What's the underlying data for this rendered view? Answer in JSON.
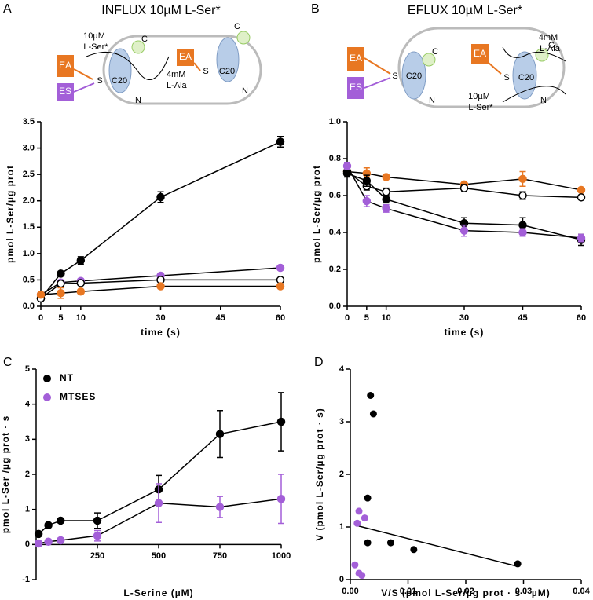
{
  "chart_data": [
    {
      "type": "line",
      "panel": "A",
      "title": "INFLUX 10µM L-Ser*",
      "x_label": "time (s)",
      "y_label": "pmol L-Ser/µg prot",
      "diagram": [
        "10µM",
        "L-Ser*",
        "EA",
        "ES",
        "S",
        "C20",
        "4mM",
        "L-Ala",
        "EA",
        "S",
        "C20",
        "N",
        "C",
        "N",
        "C"
      ],
      "x": [
        0,
        5,
        10,
        30,
        60
      ],
      "xlim": [
        0,
        60
      ],
      "xticks": [
        0,
        5,
        10,
        30,
        45,
        60
      ],
      "ylim": [
        0,
        3.5
      ],
      "yticks": [
        {
          "value": 0,
          "label": "0.0"
        },
        0.5,
        {
          "value": 1,
          "label": "1.0"
        },
        1.5,
        {
          "value": 2,
          "label": "2.0"
        },
        2.5,
        {
          "value": 3,
          "label": "3.0"
        },
        3.5
      ],
      "series": [
        {
          "color": "#000000",
          "marker": "filled",
          "values": [
            0.15,
            0.62,
            0.87,
            2.07,
            3.12
          ],
          "errors": [
            0.03,
            0.03,
            0.07,
            0.1,
            0.1
          ]
        },
        {
          "color": "#a35fd8",
          "marker": "filled",
          "values": [
            0.22,
            0.45,
            0.48,
            0.58,
            0.73
          ],
          "errors": [
            0.02,
            0.02,
            0.02,
            0.02,
            0.02
          ]
        },
        {
          "color": "#000000",
          "marker": "open",
          "values": [
            0.15,
            0.43,
            0.44,
            0.5,
            0.5
          ],
          "errors": [
            0.02,
            0.03,
            0.03,
            0.03,
            0.02
          ]
        },
        {
          "color": "#e87722",
          "marker": "filled",
          "values": [
            0.22,
            0.25,
            0.28,
            0.38,
            0.38
          ],
          "errors": [
            0.02,
            0.1,
            0.03,
            0.02,
            0.02
          ]
        }
      ]
    },
    {
      "type": "line",
      "panel": "B",
      "title": "EFLUX 10µM L-Ser*",
      "x_label": "time (s)",
      "y_label": "pmol L-Ser/µg prot",
      "diagram": [
        "EA",
        "ES",
        "S",
        "C20",
        "4mM",
        "L-Ala",
        "EA",
        "S",
        "C20",
        "10µM",
        "L-Ser*",
        "C",
        "N",
        "C",
        "N"
      ],
      "x": [
        0,
        5,
        10,
        30,
        45,
        60
      ],
      "xlim": [
        0,
        60
      ],
      "xticks": [
        0,
        5,
        10,
        30,
        45,
        60
      ],
      "ylim": [
        0,
        1
      ],
      "yticks": [
        {
          "value": 0,
          "label": "0.0"
        },
        0.2,
        0.4,
        0.6,
        0.8,
        {
          "value": 1,
          "label": "1.0"
        }
      ],
      "series": [
        {
          "color": "#e87722",
          "marker": "filled",
          "values": [
            0.73,
            0.72,
            0.7,
            0.66,
            0.69,
            0.63
          ],
          "errors": [
            0.02,
            0.03,
            0.01,
            0.01,
            0.04,
            0.01
          ]
        },
        {
          "color": "#000000",
          "marker": "open",
          "values": [
            0.73,
            0.65,
            0.62,
            0.64,
            0.6,
            0.59
          ],
          "errors": [
            0.02,
            0.02,
            0.02,
            0.02,
            0.02,
            0.01
          ]
        },
        {
          "color": "#000000",
          "marker": "filled",
          "values": [
            0.72,
            0.68,
            0.58,
            0.45,
            0.44,
            0.36
          ],
          "errors": [
            0.02,
            0.03,
            0.02,
            0.03,
            0.04,
            0.03
          ]
        },
        {
          "color": "#a35fd8",
          "marker": "filled",
          "values": [
            0.76,
            0.57,
            0.53,
            0.41,
            0.4,
            0.37
          ],
          "errors": [
            0.02,
            0.03,
            0.02,
            0.03,
            0.02,
            0.02
          ]
        }
      ]
    },
    {
      "type": "line",
      "panel": "C",
      "x_label": "L-Serine (µM)",
      "y_label": "pmol L-Ser /µg prot · s",
      "legend": "upper left",
      "x": [
        10,
        50,
        100,
        250,
        500,
        750,
        1000
      ],
      "xlim": [
        0,
        1000
      ],
      "xticks": [
        250,
        500,
        750,
        1000
      ],
      "ylim": [
        -1,
        5
      ],
      "yticks": [
        -1,
        0,
        1,
        2,
        3,
        4,
        5
      ],
      "series": [
        {
          "name": "NT",
          "color": "#000000",
          "marker": "filled",
          "values": [
            0.3,
            0.55,
            0.68,
            0.68,
            1.57,
            3.15,
            3.5
          ],
          "errors": [
            0.05,
            0.05,
            0.05,
            0.22,
            0.4,
            0.67,
            0.83
          ]
        },
        {
          "name": "MTSES",
          "color": "#a35fd8",
          "marker": "filled",
          "values": [
            0.03,
            0.08,
            0.12,
            0.25,
            1.18,
            1.07,
            1.3
          ],
          "errors": [
            0.03,
            0.03,
            0.03,
            0.15,
            0.55,
            0.3,
            0.7
          ]
        }
      ]
    },
    {
      "type": "scatter",
      "panel": "D",
      "x_label": "V/S (pmol L-Ser/µg prot · s · µM)",
      "y_label": "V (pmol L-Ser/µg prot · s)",
      "xlim": [
        0,
        0.04
      ],
      "xticks": [
        {
          "value": 0,
          "label": "0.00"
        },
        0.01,
        0.02,
        0.03,
        0.04
      ],
      "ylim": [
        0,
        4
      ],
      "yticks": [
        0,
        1,
        2,
        3,
        4
      ],
      "series": [
        {
          "color": "#000000",
          "x": [
            0.029,
            0.011,
            0.007,
            0.003,
            0.003,
            0.004,
            0.0035
          ],
          "values": [
            0.3,
            0.57,
            0.7,
            0.7,
            1.55,
            3.15,
            3.5
          ]
        },
        {
          "color": "#a35fd8",
          "x": [
            0.0008,
            0.0015,
            0.002,
            0.0012,
            0.0015,
            0.0025
          ],
          "values": [
            0.28,
            0.12,
            0.08,
            1.07,
            1.3,
            1.17
          ]
        }
      ],
      "fit_line": {
        "color": "#000000",
        "x": [
          0.001,
          0.029
        ],
        "values": [
          1.03,
          0.25
        ]
      }
    }
  ]
}
